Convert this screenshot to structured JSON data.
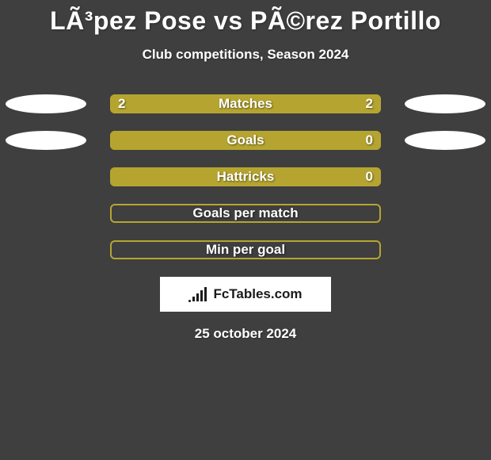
{
  "title": "LÃ³pez Pose vs PÃ©rez Portillo",
  "subtitle": "Club competitions, Season 2024",
  "colors": {
    "background": "#3f3f3f",
    "oval_fill": "#ffffff",
    "bar_border": "#b5a530",
    "bar_fill": "#b5a530",
    "text": "#ffffff",
    "site_badge_bg": "#ffffff",
    "site_logo_color": "#1a1a1a"
  },
  "typography": {
    "title_fontsize": 32,
    "title_weight": 900,
    "subtitle_fontsize": 17,
    "subtitle_weight": 700,
    "label_fontsize": 17,
    "label_weight": 800
  },
  "bars": [
    {
      "label": "Matches",
      "left_value": "2",
      "right_value": "2",
      "left_pct": 50,
      "right_pct": 50,
      "show_ovals": true,
      "show_values": true
    },
    {
      "label": "Goals",
      "left_value": "",
      "right_value": "0",
      "left_pct": 0,
      "right_pct": 100,
      "show_ovals": true,
      "show_values": true,
      "hide_left_value": true
    },
    {
      "label": "Hattricks",
      "left_value": "",
      "right_value": "0",
      "left_pct": 0,
      "right_pct": 100,
      "show_ovals": false,
      "show_values": true,
      "hide_left_value": true
    },
    {
      "label": "Goals per match",
      "left_value": "",
      "right_value": "",
      "left_pct": 0,
      "right_pct": 0,
      "show_ovals": false,
      "show_values": false,
      "border_only": true
    },
    {
      "label": "Min per goal",
      "left_value": "",
      "right_value": "",
      "left_pct": 0,
      "right_pct": 0,
      "show_ovals": false,
      "show_values": false,
      "border_only": true
    }
  ],
  "site": {
    "name": "FcTables.com"
  },
  "date": "25 october 2024"
}
